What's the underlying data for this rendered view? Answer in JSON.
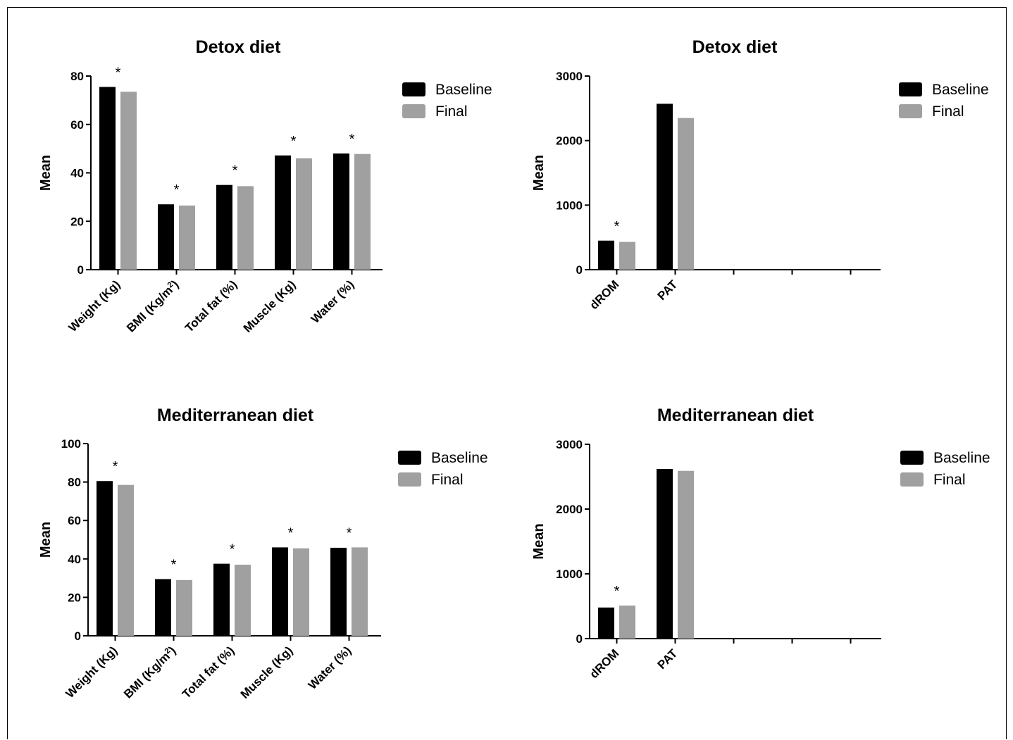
{
  "colors": {
    "baseline": "#000000",
    "final": "#a0a0a0",
    "axis": "#000000"
  },
  "chart_data": [
    {
      "type": "bar",
      "title": "Detox diet",
      "ylabel": "Mean",
      "ylim": [
        0,
        80
      ],
      "yticks": [
        "0",
        "20",
        "40",
        "60",
        "80"
      ],
      "categories": [
        "Weight (Kg)",
        "BMI (Kg/m²)",
        "Total fat (%)",
        "Muscle (Kg)",
        "Water (%)"
      ],
      "series": [
        {
          "name": "Baseline",
          "values": [
            75.5,
            27.0,
            35.0,
            47.2,
            48.0
          ]
        },
        {
          "name": "Final",
          "values": [
            73.5,
            26.5,
            34.5,
            46.0,
            47.8
          ]
        }
      ],
      "significance": [
        "*",
        "*",
        "*",
        "*",
        "*"
      ],
      "legend": "top-right"
    },
    {
      "type": "bar",
      "title": "Detox diet",
      "ylabel": "Mean",
      "ylim": [
        0,
        3000
      ],
      "yticks": [
        "0",
        "1000",
        "2000",
        "3000"
      ],
      "categories": [
        "dROM",
        "PAT",
        "",
        "",
        ""
      ],
      "series": [
        {
          "name": "Baseline",
          "values": [
            450,
            2570,
            null,
            null,
            null
          ]
        },
        {
          "name": "Final",
          "values": [
            430,
            2350,
            null,
            null,
            null
          ]
        }
      ],
      "significance": [
        "*",
        "",
        "",
        "",
        ""
      ],
      "legend": "top-right"
    },
    {
      "type": "bar",
      "title": "Mediterranean diet",
      "ylabel": "Mean",
      "ylim": [
        0,
        100
      ],
      "yticks": [
        "0",
        "20",
        "40",
        "60",
        "80",
        "100"
      ],
      "categories": [
        "Weight (Kg)",
        "BMI (Kg/m²)",
        "Total fat (%)",
        "Muscle (Kg)",
        "Water (%)"
      ],
      "series": [
        {
          "name": "Baseline",
          "values": [
            80.5,
            29.5,
            37.5,
            46.0,
            45.8
          ]
        },
        {
          "name": "Final",
          "values": [
            78.5,
            29.0,
            37.0,
            45.5,
            46.0
          ]
        }
      ],
      "significance": [
        "*",
        "*",
        "*",
        "*",
        "*"
      ],
      "legend": "top-right"
    },
    {
      "type": "bar",
      "title": "Mediterranean diet",
      "ylabel": "Mean",
      "ylim": [
        0,
        3000
      ],
      "yticks": [
        "0",
        "1000",
        "2000",
        "3000"
      ],
      "categories": [
        "dROM",
        "PAT",
        "",
        "",
        ""
      ],
      "series": [
        {
          "name": "Baseline",
          "values": [
            480,
            2620,
            null,
            null,
            null
          ]
        },
        {
          "name": "Final",
          "values": [
            510,
            2590,
            null,
            null,
            null
          ]
        }
      ],
      "significance": [
        "*",
        "",
        "",
        "",
        ""
      ],
      "legend": "top-right"
    }
  ]
}
